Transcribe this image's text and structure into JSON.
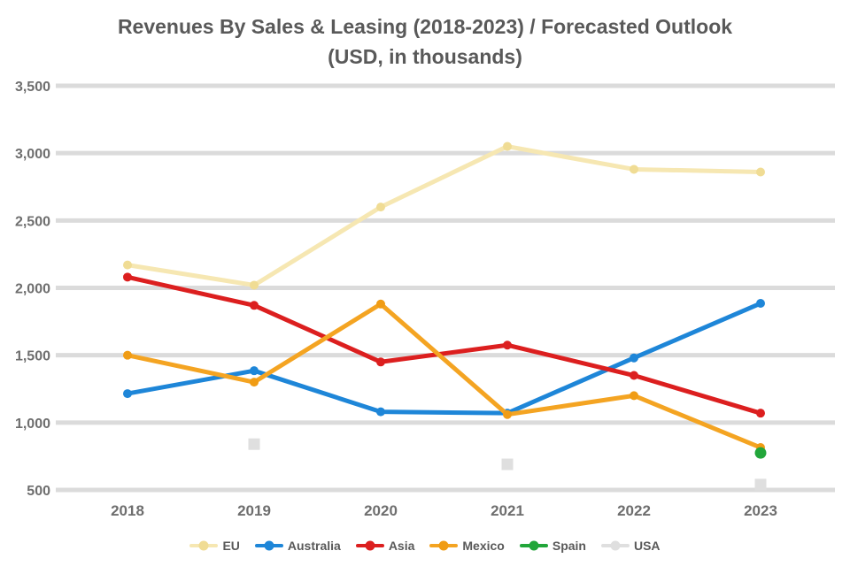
{
  "title": {
    "line1": "Revenues By Sales & Leasing (2018-2023) / Forecasted Outlook",
    "line2": "(USD, in thousands)"
  },
  "colors": {
    "background": "#ffffff",
    "gridline": "#dbdbdb",
    "title_text": "#595959",
    "axis_text": "#6e6e6e",
    "legend_text": "#595959"
  },
  "chart_data": {
    "type": "line",
    "title": "Revenues By Sales & Leasing (2018-2023) / Forecasted Outlook",
    "subtitle": "(USD, in thousands)",
    "categories": [
      "2018",
      "2019",
      "2020",
      "2021",
      "2022",
      "2023"
    ],
    "y_ticks": [
      "3,500",
      "3,000",
      "2,500",
      "2,000",
      "1,500",
      "1,000",
      "500"
    ],
    "ylim": [
      500,
      3500
    ],
    "grid": true,
    "legend_position": "bottom",
    "series": [
      {
        "name": "EU",
        "color": "#f6e7b2",
        "marker_color": "#f0dc94",
        "marker": "circle",
        "values": [
          2170,
          2020,
          2600,
          3050,
          2880,
          2860
        ]
      },
      {
        "name": "Australia",
        "color": "#1e86d8",
        "marker_color": "#1e86d8",
        "marker": "circle",
        "values": [
          1215,
          1385,
          1080,
          1070,
          1480,
          1885
        ]
      },
      {
        "name": "Asia",
        "color": "#dc1f1f",
        "marker_color": "#dc1f1f",
        "marker": "circle",
        "values": [
          2080,
          1870,
          1450,
          1575,
          1350,
          1070
        ]
      },
      {
        "name": "Mexico",
        "color": "#f4a422",
        "marker_color": "#f09c14",
        "marker": "circle",
        "values": [
          1500,
          1300,
          1880,
          1060,
          1200,
          815
        ]
      },
      {
        "name": "Spain",
        "color": "#22a63a",
        "marker_color": "#22a63a",
        "marker": "circle",
        "line": "none",
        "marker_size": 13,
        "values": [
          null,
          null,
          null,
          null,
          null,
          775
        ]
      },
      {
        "name": "USA",
        "color": "#dfdfdf",
        "marker_color": "#dfdfdf",
        "marker": "square",
        "line": "none",
        "marker_size": 13,
        "values": [
          null,
          840,
          null,
          690,
          null,
          540
        ]
      }
    ]
  }
}
